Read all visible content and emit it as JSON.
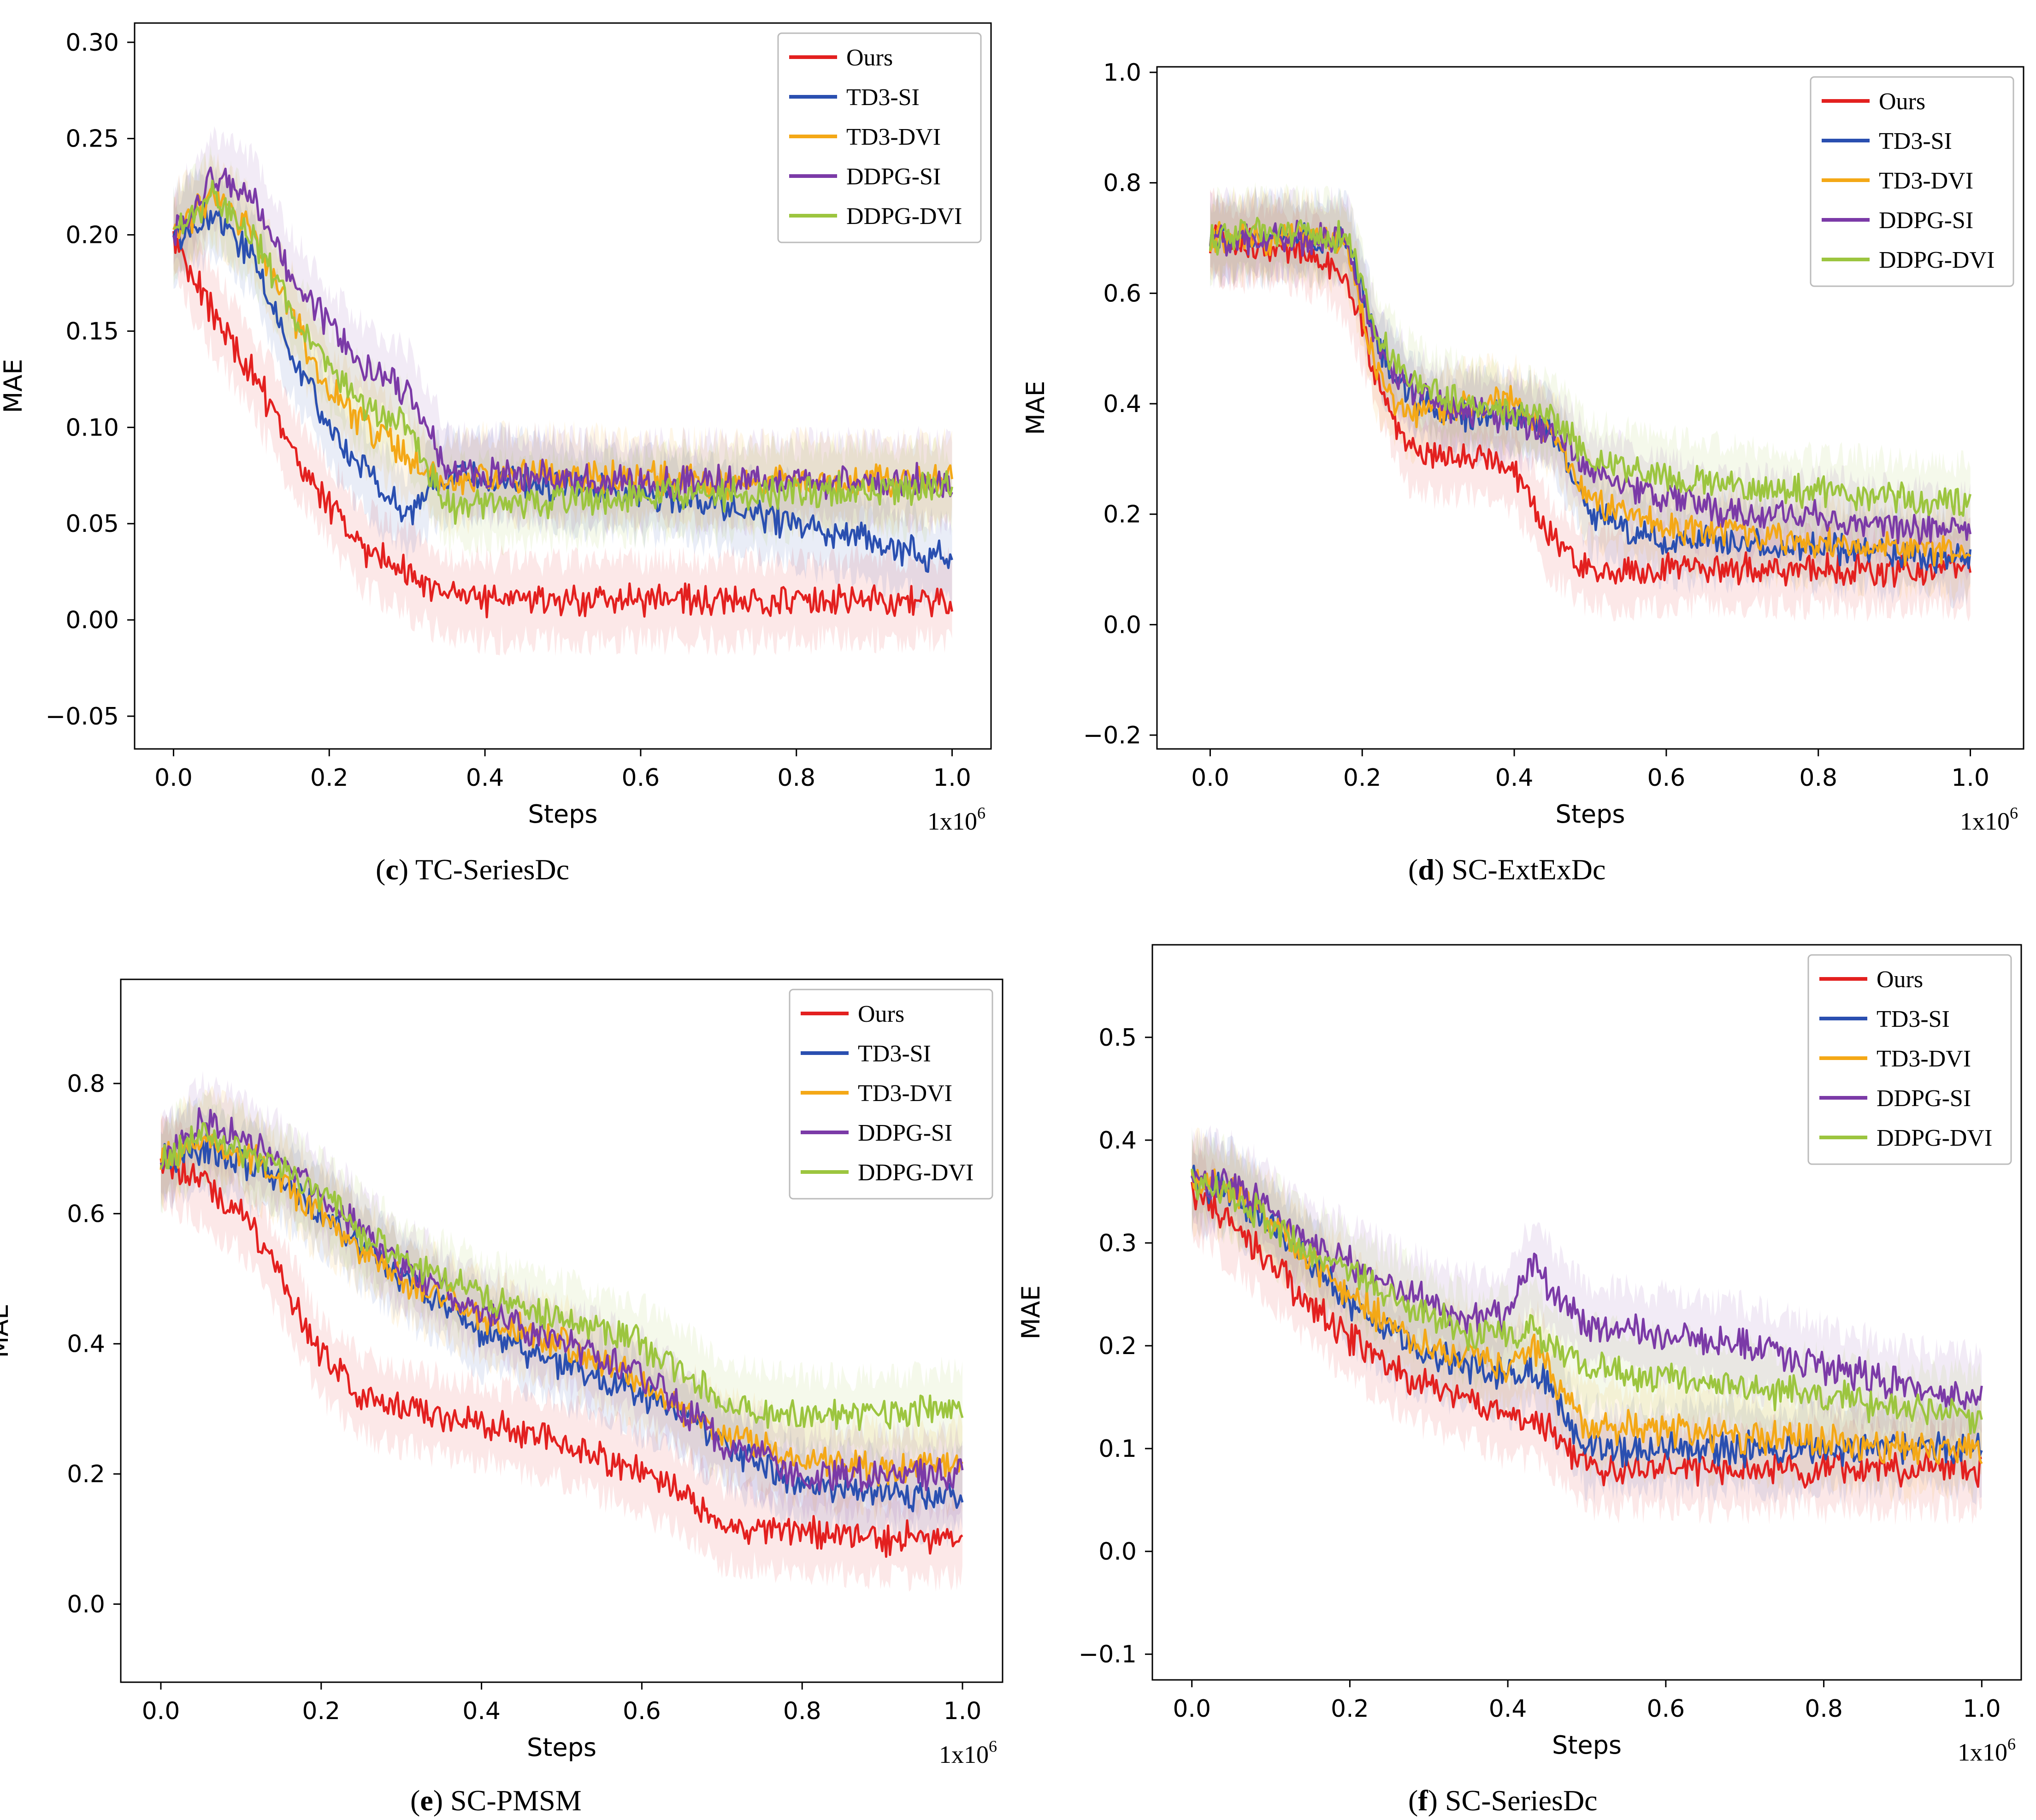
{
  "figure_colors": {
    "Ours": "#e3201f",
    "TD3-SI": "#2a4fb0",
    "TD3-DVI": "#f4a816",
    "DDPG-SI": "#7b3aa7",
    "DDPG-DVI": "#9cc53f"
  },
  "chart_data": [
    {
      "type": "line",
      "panel_letter": "c",
      "title": "TC-SeriesDc",
      "xlabel": "Steps",
      "ylabel": "MAE",
      "x_multiplier": "1x10",
      "x_multiplier_exp": "6",
      "xlim": [
        -0.05,
        1.05
      ],
      "ylim": [
        -0.067,
        0.31
      ],
      "xticks": [
        0.0,
        0.2,
        0.4,
        0.6,
        0.8,
        1.0
      ],
      "xtick_labels": [
        "0.0",
        "0.2",
        "0.4",
        "0.6",
        "0.8",
        "1.0"
      ],
      "yticks": [
        -0.05,
        0.0,
        0.05,
        0.1,
        0.15,
        0.2,
        0.25,
        0.3
      ],
      "ytick_labels": [
        "−0.05",
        "0.00",
        "0.05",
        "0.10",
        "0.15",
        "0.20",
        "0.25",
        "0.30"
      ],
      "legend": "top-right",
      "x": [
        0.0,
        0.05,
        0.1,
        0.15,
        0.2,
        0.25,
        0.3,
        0.35,
        0.4,
        0.5,
        0.6,
        0.7,
        0.8,
        0.9,
        1.0
      ],
      "series": [
        {
          "name": "Ours",
          "values": [
            0.2,
            0.16,
            0.13,
            0.09,
            0.06,
            0.035,
            0.025,
            0.012,
            0.01,
            0.01,
            0.01,
            0.01,
            0.01,
            0.01,
            0.01
          ]
        },
        {
          "name": "TD3-SI",
          "values": [
            0.2,
            0.21,
            0.19,
            0.14,
            0.1,
            0.075,
            0.055,
            0.075,
            0.075,
            0.07,
            0.065,
            0.06,
            0.05,
            0.04,
            0.03
          ]
        },
        {
          "name": "TD3-DVI",
          "values": [
            0.2,
            0.22,
            0.2,
            0.16,
            0.12,
            0.1,
            0.085,
            0.07,
            0.075,
            0.075,
            0.073,
            0.072,
            0.072,
            0.072,
            0.072
          ]
        },
        {
          "name": "DDPG-SI",
          "values": [
            0.2,
            0.23,
            0.22,
            0.18,
            0.15,
            0.13,
            0.12,
            0.08,
            0.075,
            0.073,
            0.072,
            0.072,
            0.072,
            0.072,
            0.072
          ]
        },
        {
          "name": "DDPG-DVI",
          "values": [
            0.2,
            0.22,
            0.2,
            0.16,
            0.13,
            0.11,
            0.1,
            0.06,
            0.06,
            0.062,
            0.065,
            0.066,
            0.067,
            0.068,
            0.068
          ]
        }
      ]
    },
    {
      "type": "line",
      "panel_letter": "d",
      "title": "SC-ExtExDc",
      "xlabel": "Steps",
      "ylabel": "MAE",
      "x_multiplier": "1x10",
      "x_multiplier_exp": "6",
      "xlim": [
        -0.07,
        1.07
      ],
      "ylim": [
        -0.225,
        1.01
      ],
      "xticks": [
        0.0,
        0.2,
        0.4,
        0.6,
        0.8,
        1.0
      ],
      "xtick_labels": [
        "0.0",
        "0.2",
        "0.4",
        "0.6",
        "0.8",
        "1.0"
      ],
      "yticks": [
        -0.2,
        0.0,
        0.2,
        0.4,
        0.6,
        0.8,
        1.0
      ],
      "ytick_labels": [
        "−0.2",
        "0.0",
        "0.2",
        "0.4",
        "0.6",
        "0.8",
        "1.0"
      ],
      "legend": "top-right",
      "x": [
        0.0,
        0.05,
        0.1,
        0.15,
        0.18,
        0.22,
        0.26,
        0.3,
        0.35,
        0.4,
        0.45,
        0.5,
        0.6,
        0.7,
        0.8,
        0.9,
        1.0
      ],
      "series": [
        {
          "name": "Ours",
          "values": [
            0.7,
            0.69,
            0.68,
            0.66,
            0.62,
            0.45,
            0.32,
            0.3,
            0.3,
            0.28,
            0.15,
            0.1,
            0.1,
            0.1,
            0.1,
            0.1,
            0.1
          ]
        },
        {
          "name": "TD3-SI",
          "values": [
            0.7,
            0.7,
            0.7,
            0.7,
            0.7,
            0.5,
            0.42,
            0.38,
            0.38,
            0.38,
            0.35,
            0.2,
            0.15,
            0.15,
            0.14,
            0.13,
            0.12
          ]
        },
        {
          "name": "TD3-DVI",
          "values": [
            0.7,
            0.7,
            0.7,
            0.7,
            0.68,
            0.45,
            0.38,
            0.38,
            0.4,
            0.4,
            0.35,
            0.22,
            0.18,
            0.16,
            0.15,
            0.14,
            0.13
          ]
        },
        {
          "name": "DDPG-SI",
          "values": [
            0.7,
            0.7,
            0.7,
            0.7,
            0.7,
            0.5,
            0.43,
            0.4,
            0.38,
            0.37,
            0.35,
            0.28,
            0.23,
            0.2,
            0.2,
            0.18,
            0.17
          ]
        },
        {
          "name": "DDPG-DVI",
          "values": [
            0.7,
            0.71,
            0.71,
            0.7,
            0.7,
            0.52,
            0.45,
            0.42,
            0.4,
            0.38,
            0.38,
            0.3,
            0.27,
            0.25,
            0.24,
            0.23,
            0.22
          ]
        }
      ]
    },
    {
      "type": "line",
      "panel_letter": "e",
      "title": "SC-PMSM",
      "xlabel": "Steps",
      "ylabel": "MAE",
      "x_multiplier": "1x10",
      "x_multiplier_exp": "6",
      "xlim": [
        -0.05,
        1.05
      ],
      "ylim": [
        -0.12,
        0.96
      ],
      "xticks": [
        0.0,
        0.2,
        0.4,
        0.6,
        0.8,
        1.0
      ],
      "xtick_labels": [
        "0.0",
        "0.2",
        "0.4",
        "0.6",
        "0.8",
        "1.0"
      ],
      "yticks": [
        0.0,
        0.2,
        0.4,
        0.6,
        0.8
      ],
      "ytick_labels": [
        "0.0",
        "0.2",
        "0.4",
        "0.6",
        "0.8"
      ],
      "legend": "top-right",
      "x": [
        0.0,
        0.05,
        0.1,
        0.15,
        0.2,
        0.25,
        0.3,
        0.4,
        0.5,
        0.6,
        0.65,
        0.7,
        0.8,
        0.9,
        1.0
      ],
      "series": [
        {
          "name": "Ours",
          "values": [
            0.68,
            0.65,
            0.6,
            0.5,
            0.38,
            0.32,
            0.3,
            0.28,
            0.25,
            0.2,
            0.17,
            0.12,
            0.11,
            0.1,
            0.1
          ]
        },
        {
          "name": "TD3-SI",
          "values": [
            0.68,
            0.7,
            0.68,
            0.65,
            0.6,
            0.55,
            0.5,
            0.42,
            0.37,
            0.32,
            0.29,
            0.25,
            0.18,
            0.17,
            0.17
          ]
        },
        {
          "name": "TD3-DVI",
          "values": [
            0.68,
            0.72,
            0.7,
            0.65,
            0.6,
            0.55,
            0.5,
            0.44,
            0.4,
            0.34,
            0.3,
            0.26,
            0.22,
            0.21,
            0.21
          ]
        },
        {
          "name": "DDPG-SI",
          "values": [
            0.68,
            0.74,
            0.72,
            0.68,
            0.63,
            0.58,
            0.52,
            0.45,
            0.4,
            0.35,
            0.3,
            0.25,
            0.2,
            0.2,
            0.2
          ]
        },
        {
          "name": "DDPG-DVI",
          "values": [
            0.68,
            0.72,
            0.7,
            0.67,
            0.63,
            0.57,
            0.53,
            0.47,
            0.44,
            0.4,
            0.36,
            0.31,
            0.29,
            0.29,
            0.3
          ]
        }
      ]
    },
    {
      "type": "line",
      "panel_letter": "f",
      "title": "SC-SeriesDc",
      "xlabel": "Steps",
      "ylabel": "MAE",
      "x_multiplier": "1x10",
      "x_multiplier_exp": "6",
      "xlim": [
        -0.05,
        1.05
      ],
      "ylim": [
        -0.125,
        0.59
      ],
      "xticks": [
        0.0,
        0.2,
        0.4,
        0.6,
        0.8,
        1.0
      ],
      "xtick_labels": [
        "0.0",
        "0.2",
        "0.4",
        "0.6",
        "0.8",
        "1.0"
      ],
      "yticks": [
        -0.1,
        0.0,
        0.1,
        0.2,
        0.3,
        0.4,
        0.5
      ],
      "ytick_labels": [
        "−0.1",
        "0.0",
        "0.1",
        "0.2",
        "0.3",
        "0.4",
        "0.5"
      ],
      "legend": "top-right",
      "x": [
        0.0,
        0.05,
        0.1,
        0.15,
        0.2,
        0.25,
        0.3,
        0.35,
        0.4,
        0.43,
        0.45,
        0.5,
        0.6,
        0.7,
        0.8,
        0.9,
        1.0
      ],
      "series": [
        {
          "name": "Ours",
          "values": [
            0.35,
            0.32,
            0.28,
            0.24,
            0.21,
            0.18,
            0.16,
            0.15,
            0.13,
            0.13,
            0.12,
            0.08,
            0.08,
            0.08,
            0.08,
            0.08,
            0.08
          ]
        },
        {
          "name": "TD3-SI",
          "values": [
            0.36,
            0.35,
            0.32,
            0.28,
            0.24,
            0.21,
            0.19,
            0.18,
            0.17,
            0.18,
            0.16,
            0.1,
            0.1,
            0.1,
            0.1,
            0.1,
            0.1
          ]
        },
        {
          "name": "TD3-DVI",
          "values": [
            0.36,
            0.35,
            0.32,
            0.28,
            0.25,
            0.22,
            0.2,
            0.19,
            0.18,
            0.2,
            0.18,
            0.12,
            0.12,
            0.11,
            0.11,
            0.1,
            0.1
          ]
        },
        {
          "name": "DDPG-SI",
          "values": [
            0.36,
            0.36,
            0.33,
            0.3,
            0.28,
            0.26,
            0.24,
            0.23,
            0.23,
            0.28,
            0.26,
            0.22,
            0.21,
            0.2,
            0.18,
            0.16,
            0.15
          ]
        },
        {
          "name": "DDPG-DVI",
          "values": [
            0.36,
            0.35,
            0.32,
            0.29,
            0.27,
            0.25,
            0.23,
            0.21,
            0.21,
            0.22,
            0.2,
            0.18,
            0.17,
            0.16,
            0.15,
            0.14,
            0.13
          ]
        }
      ]
    }
  ]
}
